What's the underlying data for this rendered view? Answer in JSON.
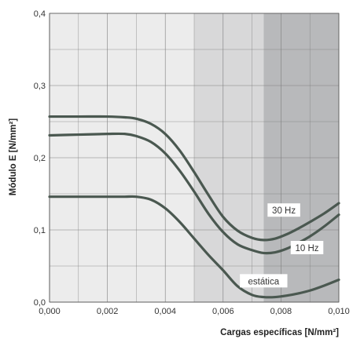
{
  "chart_data": {
    "type": "line",
    "xlabel": "Cargas específicas [N/mm²]",
    "ylabel": "Módulo E [N/mm²]",
    "xlim": [
      0.0,
      0.01
    ],
    "ylim": [
      0.0,
      0.4
    ],
    "x_ticks": [
      0.0,
      0.002,
      0.004,
      0.006,
      0.008,
      0.01
    ],
    "x_tick_labels": [
      "0,000",
      "0,002",
      "0,004",
      "0,006",
      "0,008",
      "0,010"
    ],
    "y_ticks": [
      0.0,
      0.1,
      0.2,
      0.3,
      0.4
    ],
    "y_tick_labels": [
      "0,0",
      "0,1",
      "0,2",
      "0,3",
      "0,4"
    ],
    "grid": true,
    "shaded_regions": [
      {
        "from": 0.0,
        "to": 0.005,
        "color": "#ececec"
      },
      {
        "from": 0.005,
        "to": 0.0074,
        "color": "#d8d8d9"
      },
      {
        "from": 0.0074,
        "to": 0.01,
        "color": "#b8b9bb"
      }
    ],
    "series_color": "#4a5850",
    "series": [
      {
        "name": "",
        "x": [
          0.0,
          0.001,
          0.002,
          0.0026,
          0.003,
          0.0035,
          0.004,
          0.0045,
          0.005,
          0.0055,
          0.006,
          0.0065,
          0.007,
          0.0074,
          0.0078,
          0.0082,
          0.0086,
          0.009,
          0.0095,
          0.01
        ],
        "values": [
          0.257,
          0.257,
          0.257,
          0.256,
          0.254,
          0.247,
          0.233,
          0.21,
          0.18,
          0.148,
          0.118,
          0.099,
          0.089,
          0.086,
          0.088,
          0.094,
          0.102,
          0.111,
          0.123,
          0.137
        ]
      },
      {
        "name": "30 Hz",
        "x": [
          0.0,
          0.001,
          0.002,
          0.0026,
          0.003,
          0.0035,
          0.004,
          0.0045,
          0.005,
          0.0055,
          0.006,
          0.0065,
          0.007,
          0.0074,
          0.0078,
          0.0082,
          0.0086,
          0.009,
          0.0095,
          0.01
        ],
        "values": [
          0.231,
          0.232,
          0.233,
          0.233,
          0.23,
          0.222,
          0.206,
          0.182,
          0.153,
          0.122,
          0.097,
          0.08,
          0.072,
          0.068,
          0.069,
          0.074,
          0.082,
          0.091,
          0.105,
          0.121
        ]
      },
      {
        "name": "10 Hz",
        "x": [
          0.0,
          0.001,
          0.002,
          0.0026,
          0.003,
          0.0035,
          0.004,
          0.0045,
          0.005,
          0.0055,
          0.006,
          0.0065,
          0.007,
          0.0074,
          0.0078,
          0.0082,
          0.0086,
          0.009,
          0.0095,
          0.01
        ],
        "values": [
          0.146,
          0.146,
          0.146,
          0.146,
          0.146,
          0.142,
          0.13,
          0.111,
          0.088,
          0.065,
          0.044,
          0.022,
          0.01,
          0.007,
          0.007,
          0.009,
          0.012,
          0.016,
          0.023,
          0.031
        ]
      }
    ],
    "annotations": [
      {
        "text": "30 Hz",
        "x": 0.0081,
        "y": 0.127
      },
      {
        "text": "10 Hz",
        "x": 0.0089,
        "y": 0.075
      },
      {
        "text": "estática",
        "x": 0.0074,
        "y": 0.029
      }
    ]
  }
}
